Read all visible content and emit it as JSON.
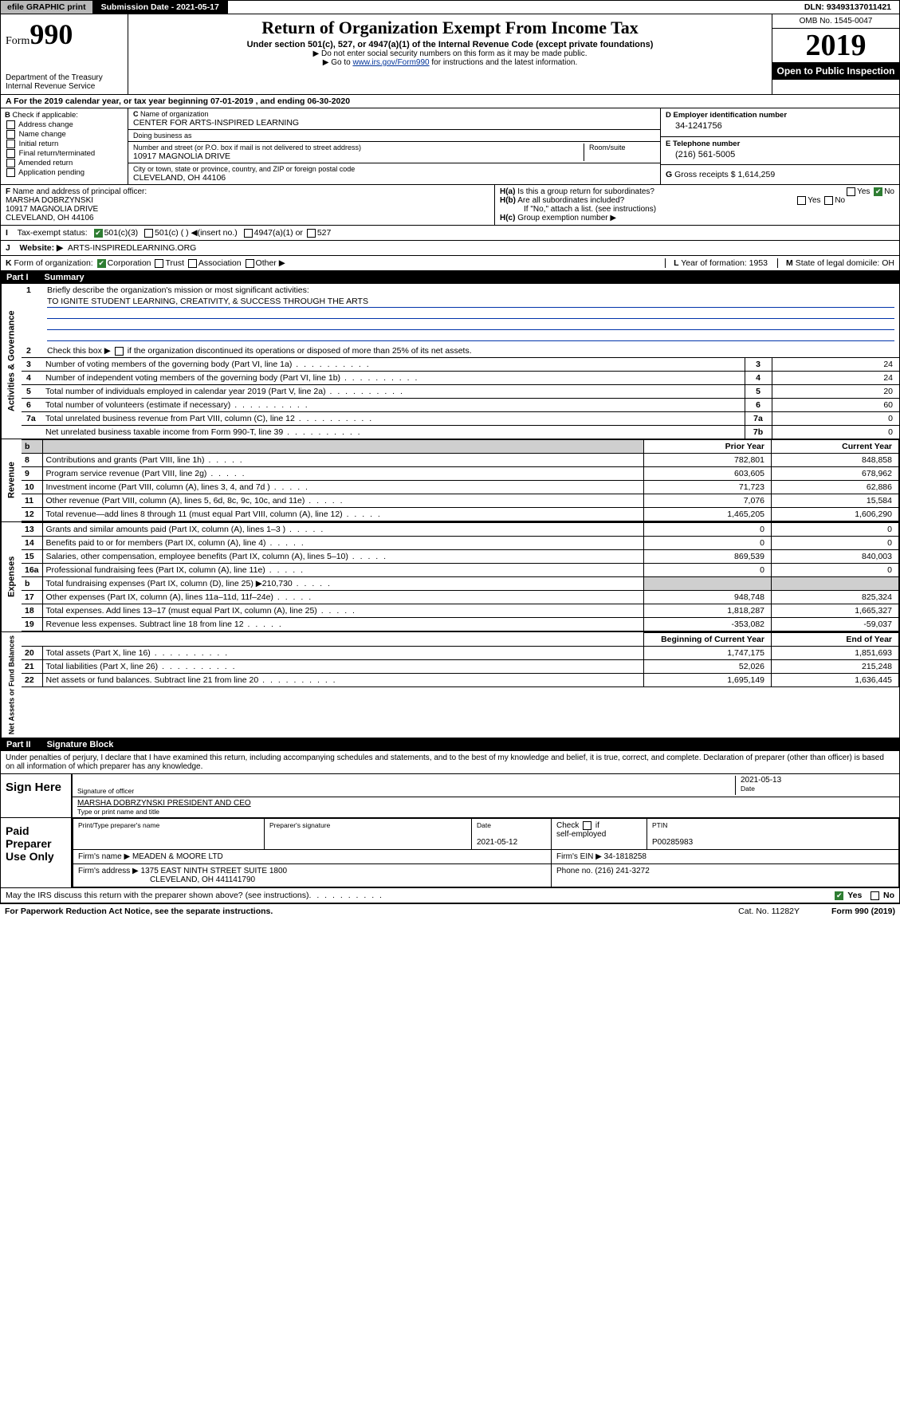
{
  "top": {
    "efile": "efile GRAPHIC print",
    "submission": "Submission Date - 2021-05-17",
    "dln": "DLN: 93493137011421"
  },
  "header": {
    "form_prefix": "Form",
    "form_num": "990",
    "dept1": "Department of the Treasury",
    "dept2": "Internal Revenue Service",
    "title": "Return of Organization Exempt From Income Tax",
    "sub": "Under section 501(c), 527, or 4947(a)(1) of the Internal Revenue Code (except private foundations)",
    "note1": "Do not enter social security numbers on this form as it may be made public.",
    "note2_a": "Go to ",
    "note2_link": "www.irs.gov/Form990",
    "note2_b": " for instructions and the latest information.",
    "omb": "OMB No. 1545-0047",
    "year": "2019",
    "open": "Open to Public Inspection"
  },
  "A": {
    "text": "For the 2019 calendar year, or tax year beginning 07-01-2019    , and ending 06-30-2020"
  },
  "B": {
    "label": "Check if applicable:",
    "items": [
      "Address change",
      "Name change",
      "Initial return",
      "Final return/terminated",
      "Amended return",
      "Application pending"
    ]
  },
  "C": {
    "name_label": "Name of organization",
    "name": "CENTER FOR ARTS-INSPIRED LEARNING",
    "dba_label": "Doing business as",
    "dba": "",
    "street_label": "Number and street (or P.O. box if mail is not delivered to street address)",
    "room_label": "Room/suite",
    "street": "10917 MAGNOLIA DRIVE",
    "city_label": "City or town, state or province, country, and ZIP or foreign postal code",
    "city": "CLEVELAND, OH  44106"
  },
  "D": {
    "label": "Employer identification number",
    "val": "34-1241756"
  },
  "E": {
    "label": "Telephone number",
    "val": "(216) 561-5005"
  },
  "G": {
    "label": "Gross receipts $",
    "val": "1,614,259"
  },
  "F": {
    "label": "Name and address of principal officer:",
    "name": "MARSHA DOBRZYNSKI",
    "addr1": "10917 MAGNOLIA DRIVE",
    "addr2": "CLEVELAND, OH  44106"
  },
  "H": {
    "a": "Is this a group return for subordinates?",
    "b": "Are all subordinates included?",
    "b_note": "If \"No,\" attach a list. (see instructions)",
    "c": "Group exemption number ▶"
  },
  "I": {
    "label": "Tax-exempt status:",
    "opts": [
      "501(c)(3)",
      "501(c) (  ) ◀(insert no.)",
      "4947(a)(1) or",
      "527"
    ]
  },
  "J": {
    "label": "Website: ▶",
    "val": "ARTS-INSPIREDLEARNING.ORG"
  },
  "K": {
    "label": "Form of organization:",
    "opts": [
      "Corporation",
      "Trust",
      "Association",
      "Other ▶"
    ],
    "L": "Year of formation: 1953",
    "M": "State of legal domicile: OH"
  },
  "partI": {
    "num": "Part I",
    "title": "Summary"
  },
  "summary": {
    "l1": "Briefly describe the organization's mission or most significant activities:",
    "mission": "TO IGNITE STUDENT LEARNING, CREATIVITY, & SUCCESS THROUGH THE ARTS",
    "l2": "Check this box ▶       if the organization discontinued its operations or disposed of more than 25% of its net assets.",
    "rows_gov": [
      {
        "n": "3",
        "d": "Number of voting members of the governing body (Part VI, line 1a)",
        "b": "3",
        "v": "24"
      },
      {
        "n": "4",
        "d": "Number of independent voting members of the governing body (Part VI, line 1b)",
        "b": "4",
        "v": "24"
      },
      {
        "n": "5",
        "d": "Total number of individuals employed in calendar year 2019 (Part V, line 2a)",
        "b": "5",
        "v": "20"
      },
      {
        "n": "6",
        "d": "Total number of volunteers (estimate if necessary)",
        "b": "6",
        "v": "60"
      },
      {
        "n": "7a",
        "d": "Total unrelated business revenue from Part VIII, column (C), line 12",
        "b": "7a",
        "v": "0"
      },
      {
        "n": "",
        "d": "Net unrelated business taxable income from Form 990-T, line 39",
        "b": "7b",
        "v": "0"
      }
    ],
    "col_h1": "Prior Year",
    "col_h2": "Current Year",
    "rev": [
      {
        "n": "8",
        "d": "Contributions and grants (Part VIII, line 1h)",
        "c1": "782,801",
        "c2": "848,858"
      },
      {
        "n": "9",
        "d": "Program service revenue (Part VIII, line 2g)",
        "c1": "603,605",
        "c2": "678,962"
      },
      {
        "n": "10",
        "d": "Investment income (Part VIII, column (A), lines 3, 4, and 7d )",
        "c1": "71,723",
        "c2": "62,886"
      },
      {
        "n": "11",
        "d": "Other revenue (Part VIII, column (A), lines 5, 6d, 8c, 9c, 10c, and 11e)",
        "c1": "7,076",
        "c2": "15,584"
      },
      {
        "n": "12",
        "d": "Total revenue—add lines 8 through 11 (must equal Part VIII, column (A), line 12)",
        "c1": "1,465,205",
        "c2": "1,606,290"
      }
    ],
    "exp": [
      {
        "n": "13",
        "d": "Grants and similar amounts paid (Part IX, column (A), lines 1–3 )",
        "c1": "0",
        "c2": "0"
      },
      {
        "n": "14",
        "d": "Benefits paid to or for members (Part IX, column (A), line 4)",
        "c1": "0",
        "c2": "0"
      },
      {
        "n": "15",
        "d": "Salaries, other compensation, employee benefits (Part IX, column (A), lines 5–10)",
        "c1": "869,539",
        "c2": "840,003"
      },
      {
        "n": "16a",
        "d": "Professional fundraising fees (Part IX, column (A), line 11e)",
        "c1": "0",
        "c2": "0"
      },
      {
        "n": "b",
        "d": "Total fundraising expenses (Part IX, column (D), line 25) ▶210,730",
        "c1": "",
        "c2": "",
        "grey": true
      },
      {
        "n": "17",
        "d": "Other expenses (Part IX, column (A), lines 11a–11d, 11f–24e)",
        "c1": "948,748",
        "c2": "825,324"
      },
      {
        "n": "18",
        "d": "Total expenses. Add lines 13–17 (must equal Part IX, column (A), line 25)",
        "c1": "1,818,287",
        "c2": "1,665,327"
      },
      {
        "n": "19",
        "d": "Revenue less expenses. Subtract line 18 from line 12",
        "c1": "-353,082",
        "c2": "-59,037"
      }
    ],
    "na_h1": "Beginning of Current Year",
    "na_h2": "End of Year",
    "na": [
      {
        "n": "20",
        "d": "Total assets (Part X, line 16)",
        "c1": "1,747,175",
        "c2": "1,851,693"
      },
      {
        "n": "21",
        "d": "Total liabilities (Part X, line 26)",
        "c1": "52,026",
        "c2": "215,248"
      },
      {
        "n": "22",
        "d": "Net assets or fund balances. Subtract line 21 from line 20",
        "c1": "1,695,149",
        "c2": "1,636,445"
      }
    ]
  },
  "partII": {
    "num": "Part II",
    "title": "Signature Block"
  },
  "sig": {
    "perjury": "Under penalties of perjury, I declare that I have examined this return, including accompanying schedules and statements, and to the best of my knowledge and belief, it is true, correct, and complete. Declaration of preparer (other than officer) is based on all information of which preparer has any knowledge.",
    "sign_here": "Sign Here",
    "sig_officer_date": "2021-05-13",
    "sig_officer_label": "Signature of officer",
    "date_label": "Date",
    "officer_name": "MARSHA DOBRZYNSKI  PRESIDENT AND CEO",
    "officer_name_label": "Type or print name and title",
    "paid": "Paid Preparer Use Only",
    "prep_name_label": "Print/Type preparer's name",
    "prep_sig_label": "Preparer's signature",
    "prep_date_label": "Date",
    "prep_date": "2021-05-12",
    "self_emp": "self-employed",
    "check_if": "Check",
    "if": "if",
    "ptin_label": "PTIN",
    "ptin": "P00285983",
    "firm_name_label": "Firm's name    ▶",
    "firm_name": "MEADEN & MOORE LTD",
    "firm_ein_label": "Firm's EIN ▶",
    "firm_ein": "34-1818258",
    "firm_addr_label": "Firm's address ▶",
    "firm_addr1": "1375 EAST NINTH STREET SUITE 1800",
    "firm_addr2": "CLEVELAND, OH  441141790",
    "phone_label": "Phone no.",
    "phone": "(216) 241-3272"
  },
  "discuss": {
    "q": "May the IRS discuss this return with the preparer shown above? (see instructions)"
  },
  "footer": {
    "left": "For Paperwork Reduction Act Notice, see the separate instructions.",
    "mid": "Cat. No. 11282Y",
    "right": "Form 990 (2019)"
  }
}
